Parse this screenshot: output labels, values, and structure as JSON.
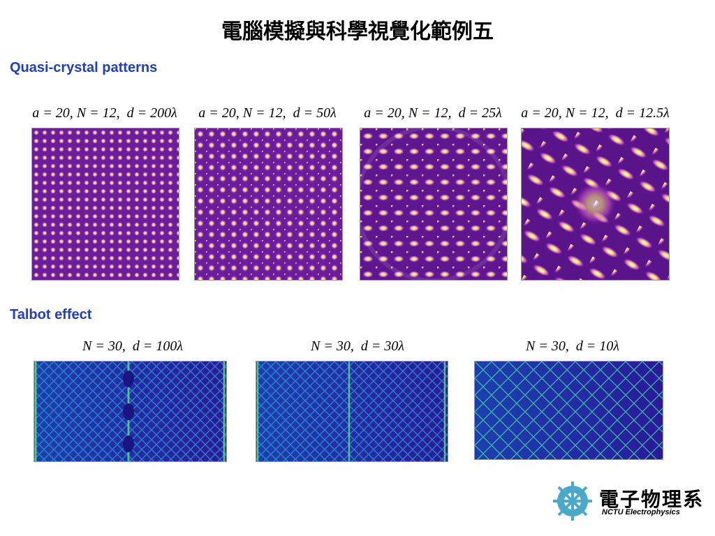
{
  "title": "電腦模擬與科學視覺化範例五",
  "sections": [
    {
      "heading": "Quasi-crystal patterns",
      "panels": [
        {
          "caption": "a = 20, N = 12,  d = 200λ"
        },
        {
          "caption": "a = 20, N = 12,  d = 50λ"
        },
        {
          "caption": "a = 20, N = 12,  d = 25λ"
        },
        {
          "caption": "a = 20, N = 12,  d = 12.5λ"
        }
      ]
    },
    {
      "heading": "Talbot effect",
      "panels": [
        {
          "caption": "N = 30,  d = 100λ"
        },
        {
          "caption": "N = 30,  d = 30λ"
        },
        {
          "caption": "N = 30,  d = 10λ"
        }
      ]
    }
  ],
  "logo": {
    "name": "電子物理系",
    "subtitle": "NCTU Electrophysics"
  }
}
